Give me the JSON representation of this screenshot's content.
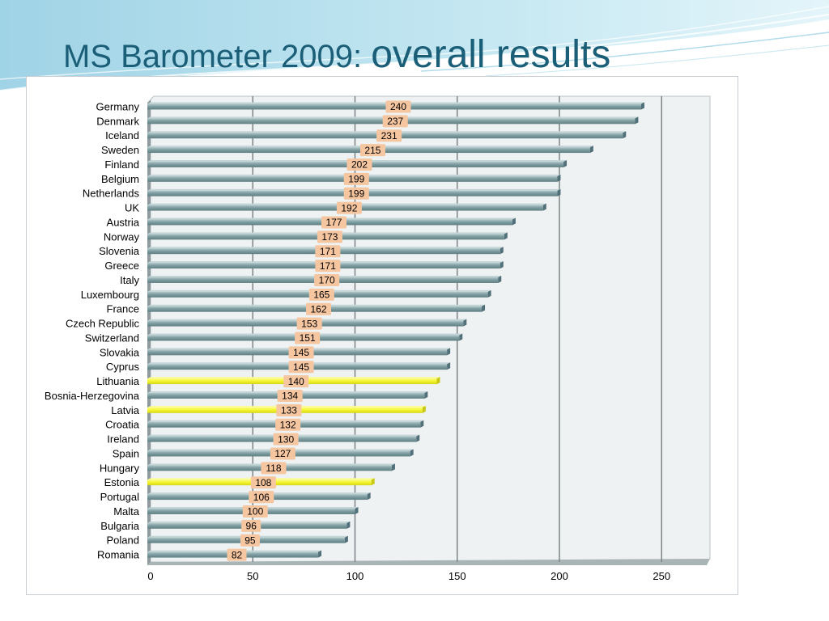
{
  "slide": {
    "title_main": "MS Barometer 2009: ",
    "title_accent": "overall results"
  },
  "colors": {
    "bar": "#7f9ea2",
    "bar_highlight": "#f5f52e",
    "label_bg": "#f6c6a0",
    "title": "#1a5e77",
    "plot_bg": "#eef2f3",
    "gridline": "#7d8488"
  },
  "chart_data": {
    "type": "bar",
    "orientation": "horizontal",
    "title": "",
    "xlabel": "",
    "ylabel": "",
    "xlim": [
      0,
      270
    ],
    "x_ticks": [
      0,
      50,
      100,
      150,
      200,
      250
    ],
    "grid": true,
    "legend": "none",
    "categories": [
      "Germany",
      "Denmark",
      "Iceland",
      "Sweden",
      "Finland",
      "Belgium",
      "Netherlands",
      "UK",
      "Austria",
      "Norway",
      "Slovenia",
      "Greece",
      "Italy",
      "Luxembourg",
      "France",
      "Czech Republic",
      "Switzerland",
      "Slovakia",
      "Cyprus",
      "Lithuania",
      "Bosnia-Herzegovina",
      "Latvia",
      "Croatia",
      "Ireland",
      "Spain",
      "Hungary",
      "Estonia",
      "Portugal",
      "Malta",
      "Bulgaria",
      "Poland",
      "Romania"
    ],
    "values": [
      240,
      237,
      231,
      215,
      202,
      199,
      199,
      192,
      177,
      173,
      171,
      171,
      170,
      165,
      162,
      153,
      151,
      145,
      145,
      140,
      134,
      133,
      132,
      130,
      127,
      118,
      108,
      106,
      100,
      96,
      95,
      82
    ],
    "highlighted": [
      "Lithuania",
      "Latvia",
      "Estonia"
    ],
    "data_labels": true
  }
}
